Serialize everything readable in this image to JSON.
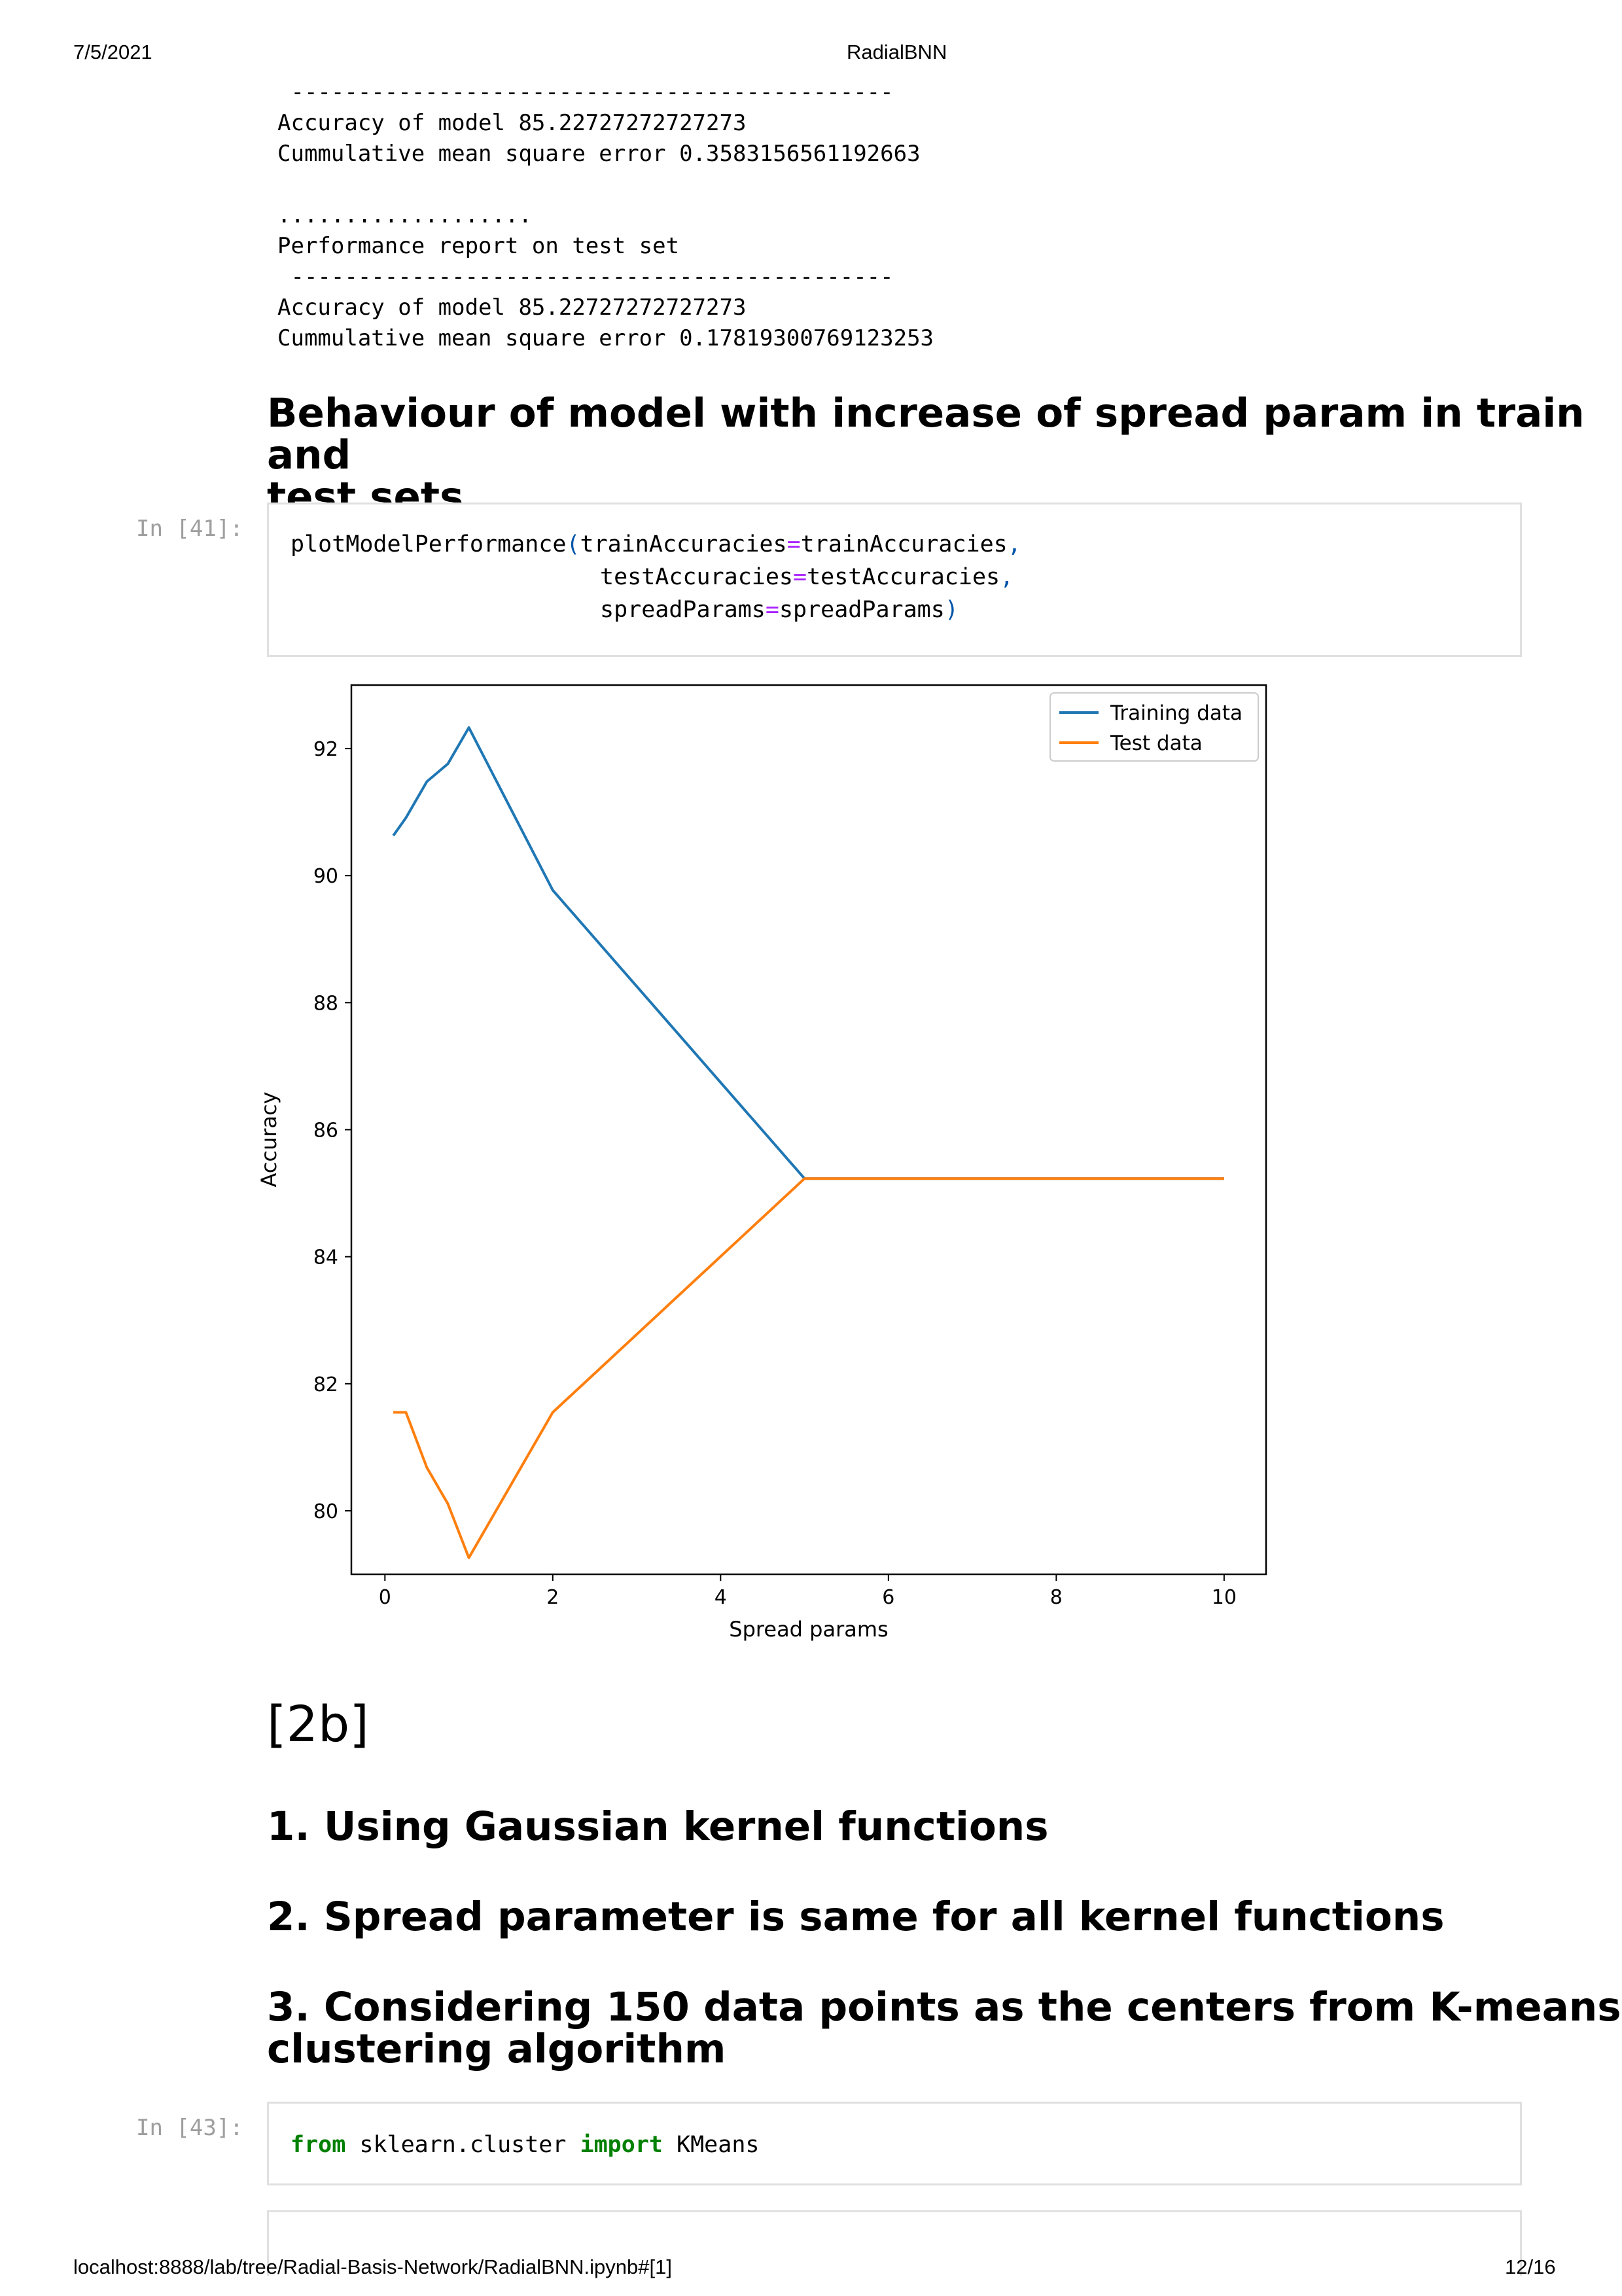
{
  "print_header": {
    "date": "7/5/2021",
    "title": "RadialBNN"
  },
  "print_footer": {
    "url": "localhost:8888/lab/tree/Radial-Basis-Network/RadialBNN.ipynb#[1]",
    "page": "12/16"
  },
  "output_top": {
    "dashes": " ---------------------------------------------",
    "accuracy_line": "Accuracy of model 85.22727272727273",
    "mse_line": "Cummulative mean square error 0.3583156561192663",
    "dots": "...................",
    "test_heading": "Performance report on test set",
    "dashes2": " ---------------------------------------------",
    "test_accuracy_line": "Accuracy of model 85.22727272727273",
    "test_mse_line": "Cummulative mean square error 0.17819300769123253"
  },
  "section_heading": {
    "line1": "Behaviour of model with increase of spread param in train and",
    "line2": "test sets"
  },
  "cell_41": {
    "prompt": "In [41]:",
    "fn": "plotModelPerformance",
    "open": "(",
    "arg1_name": "trainAccuracies",
    "arg1_val": "trainAccuracies",
    "arg2_name": "testAccuracies",
    "arg2_val": "testAccuracies",
    "arg3_name": "spreadParams",
    "arg3_val": "spreadParams",
    "eq": "=",
    "comma": ",",
    "close": ")"
  },
  "heading_2b": "[2b]",
  "list_headings": [
    "1. Using Gaussian kernel functions",
    "2. Spread parameter is same for all kernel functions",
    "3. Considering 150 data points as the centers from K-means",
    "clustering algorithm"
  ],
  "cell_43": {
    "prompt": "In [43]:",
    "kw_from": "from",
    "module": " sklearn.cluster ",
    "kw_import": "import",
    "name": " KMeans"
  },
  "chart_data": {
    "type": "line",
    "title": "",
    "xlabel": "Spread params",
    "ylabel": "Accuracy",
    "xlim": [
      -0.4,
      10.5
    ],
    "ylim": [
      79.0,
      93.0
    ],
    "xticks": [
      0,
      2,
      4,
      6,
      8,
      10
    ],
    "yticks": [
      80,
      82,
      84,
      86,
      88,
      90,
      92
    ],
    "grid": false,
    "legend_position": "top-right",
    "series": [
      {
        "name": "Training data",
        "color": "#1f77b4",
        "x": [
          0.1,
          0.25,
          0.5,
          0.75,
          1.0,
          2.0,
          5.0,
          6.0,
          7.0,
          8.0,
          9.0,
          10.0
        ],
        "y": [
          90.63,
          90.91,
          91.48,
          91.76,
          92.33,
          89.77,
          85.23,
          85.23,
          85.23,
          85.23,
          85.23,
          85.23
        ]
      },
      {
        "name": "Test data",
        "color": "#ff7f0e",
        "x": [
          0.1,
          0.25,
          0.5,
          0.75,
          1.0,
          2.0,
          5.0,
          6.0,
          7.0,
          8.0,
          9.0,
          10.0
        ],
        "y": [
          81.55,
          81.55,
          80.68,
          80.11,
          79.26,
          81.55,
          85.23,
          85.23,
          85.23,
          85.23,
          85.23,
          85.23
        ]
      }
    ]
  }
}
